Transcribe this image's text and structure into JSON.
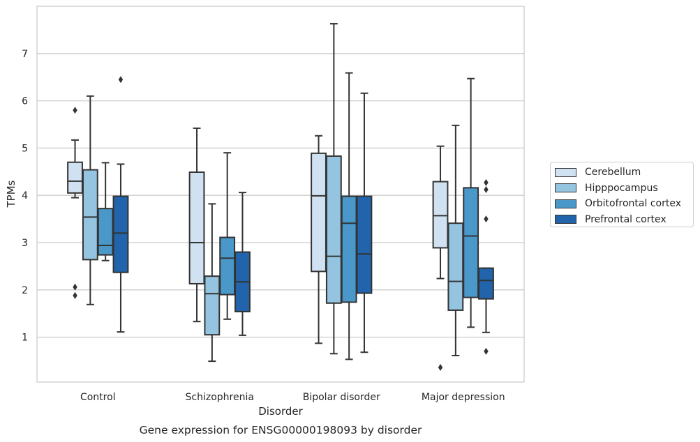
{
  "chart_data": {
    "type": "boxplot",
    "xlabel": "Disorder",
    "ylabel": "TPMs",
    "caption": "Gene expression for ENSG00000198093 by disorder",
    "categories": [
      "Control",
      "Schizophrenia",
      "Bipolar disorder",
      "Major depression"
    ],
    "ylim": [
      0.05,
      8.0
    ],
    "yticks": [
      1,
      2,
      3,
      4,
      5,
      6,
      7
    ],
    "grid": "horizontal",
    "legend_position": "right",
    "series": [
      {
        "name": "Cerebellum",
        "color": "#d0e1f2",
        "boxes": [
          {
            "whislo": 3.95,
            "q1": 4.05,
            "med": 4.3,
            "q3": 4.7,
            "whishi": 5.17,
            "fliers": [
              5.8,
              2.06,
              1.88
            ]
          },
          {
            "whislo": 1.33,
            "q1": 2.13,
            "med": 3.0,
            "q3": 4.49,
            "whishi": 5.42,
            "fliers": []
          },
          {
            "whislo": 0.87,
            "q1": 2.39,
            "med": 3.99,
            "q3": 4.89,
            "whishi": 5.26,
            "fliers": []
          },
          {
            "whislo": 2.24,
            "q1": 2.89,
            "med": 3.57,
            "q3": 4.29,
            "whishi": 5.04,
            "fliers": [
              0.36
            ]
          }
        ]
      },
      {
        "name": "Hipppocampus",
        "color": "#94c4df",
        "boxes": [
          {
            "whislo": 1.69,
            "q1": 2.64,
            "med": 3.54,
            "q3": 4.54,
            "whishi": 6.1,
            "fliers": []
          },
          {
            "whislo": 0.49,
            "q1": 1.05,
            "med": 1.92,
            "q3": 2.29,
            "whishi": 3.82,
            "fliers": []
          },
          {
            "whislo": 0.65,
            "q1": 1.72,
            "med": 2.71,
            "q3": 4.83,
            "whishi": 7.63,
            "fliers": []
          },
          {
            "whislo": 0.61,
            "q1": 1.57,
            "med": 2.18,
            "q3": 3.41,
            "whishi": 5.48,
            "fliers": []
          }
        ]
      },
      {
        "name": "Orbitofrontal cortex",
        "color": "#4a98c9",
        "boxes": [
          {
            "whislo": 2.62,
            "q1": 2.74,
            "med": 2.94,
            "q3": 3.72,
            "whishi": 4.69,
            "fliers": []
          },
          {
            "whislo": 1.38,
            "q1": 1.9,
            "med": 2.67,
            "q3": 3.11,
            "whishi": 4.9,
            "fliers": []
          },
          {
            "whislo": 0.53,
            "q1": 1.74,
            "med": 3.41,
            "q3": 3.98,
            "whishi": 6.59,
            "fliers": []
          },
          {
            "whislo": 1.21,
            "q1": 1.84,
            "med": 3.14,
            "q3": 4.16,
            "whishi": 6.47,
            "fliers": []
          }
        ]
      },
      {
        "name": "Prefrontal cortex",
        "color": "#2164ab",
        "boxes": [
          {
            "whislo": 1.11,
            "q1": 2.37,
            "med": 3.2,
            "q3": 3.98,
            "whishi": 4.66,
            "fliers": [
              6.45
            ]
          },
          {
            "whislo": 1.04,
            "q1": 1.54,
            "med": 2.17,
            "q3": 2.8,
            "whishi": 4.06,
            "fliers": []
          },
          {
            "whislo": 0.68,
            "q1": 1.93,
            "med": 2.76,
            "q3": 3.98,
            "whishi": 6.16,
            "fliers": []
          },
          {
            "whislo": 1.1,
            "q1": 1.81,
            "med": 2.2,
            "q3": 2.46,
            "whishi": 2.46,
            "fliers": [
              4.27,
              4.12,
              3.5,
              0.7
            ]
          }
        ]
      }
    ]
  }
}
